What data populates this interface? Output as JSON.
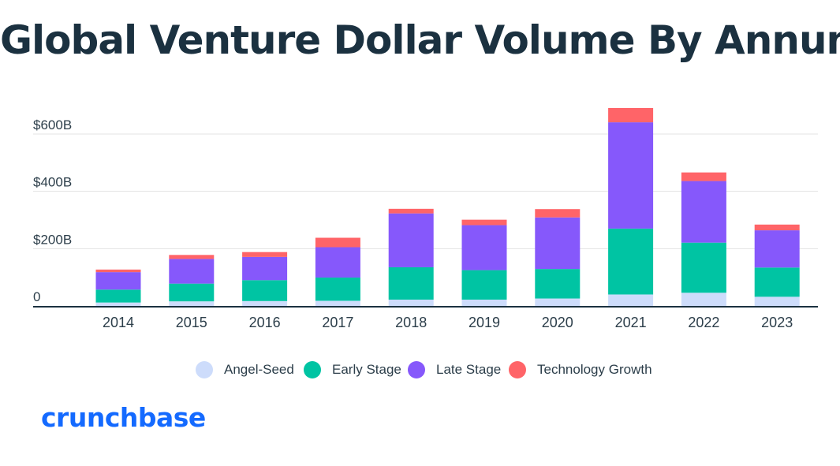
{
  "colors": {
    "title": "#1b3140",
    "axis_text": "#2c3e4a",
    "gridline": "#e3e3e3",
    "baseline": "#1b3140",
    "angel_seed": "#cddcfb",
    "early_stage": "#00c4a3",
    "late_stage": "#8658fb",
    "technology_growth": "#ff6468",
    "brand": "#146aff"
  },
  "logo": {
    "text": "crunchbase"
  },
  "chart_data": {
    "type": "bar",
    "stacked": true,
    "title": "Global Venture Dollar Volume By Annum",
    "xlabel": "",
    "ylabel": "",
    "ylim": [
      0,
      700
    ],
    "y_unit": "billions USD",
    "yticks": [
      0,
      200,
      400,
      600
    ],
    "ytick_labels": [
      "0",
      "$200B",
      "$400B",
      "$600B"
    ],
    "grid": true,
    "legend_position": "bottom",
    "categories": [
      "2014",
      "2015",
      "2016",
      "2017",
      "2018",
      "2019",
      "2020",
      "2021",
      "2022",
      "2023"
    ],
    "series": [
      {
        "name": "Angel-Seed",
        "color": "#cddcfb",
        "values": [
          12,
          16,
          17,
          18,
          22,
          22,
          26,
          40,
          46,
          32
        ]
      },
      {
        "name": "Early Stage",
        "color": "#00c4a3",
        "values": [
          45,
          62,
          73,
          81,
          113,
          103,
          103,
          230,
          175,
          102
        ]
      },
      {
        "name": "Late Stage",
        "color": "#8658fb",
        "values": [
          61,
          86,
          81,
          106,
          188,
          157,
          180,
          371,
          215,
          130
        ]
      },
      {
        "name": "Technology Growth",
        "color": "#ff6468",
        "values": [
          9,
          14,
          17,
          33,
          16,
          19,
          29,
          50,
          30,
          20
        ]
      }
    ]
  }
}
